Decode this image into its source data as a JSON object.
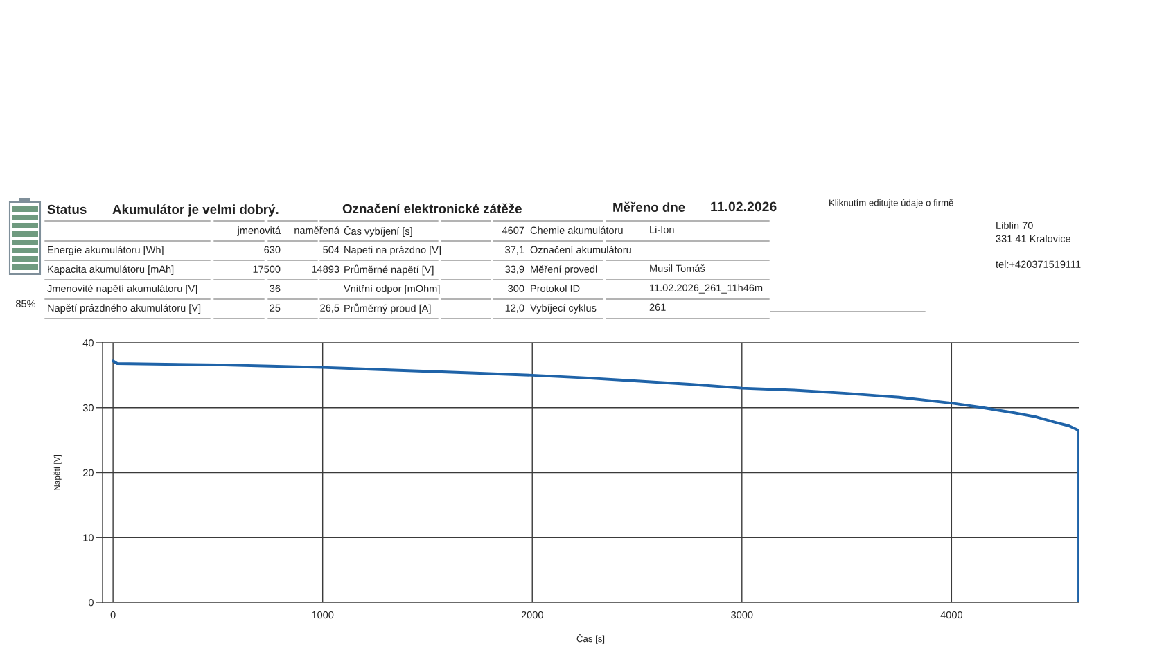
{
  "chart_data": [
    {
      "type": "other",
      "annotations": [
        "Status",
        "Akumulátor je velmi dobrý.",
        "Označení elektronické zátěže",
        "Měřeno dne",
        "11.02.2026",
        "Kliknutím editujte údaje o firmě",
        "jmenovitá",
        "naměřená",
        "Čas vybíjení [s]",
        "4607",
        "Chemie akumulátoru",
        "Li-Ion",
        "Energie akumulátoru [Wh]",
        "630",
        "504",
        "Napeti na prázdno [V]",
        "37,1",
        "Označení akumulátoru",
        "Kapacita akumulátoru [mAh]",
        "17500",
        "14893",
        "Průměrné napětí [V]",
        "33,9",
        "Měření provedl",
        "Musil Tomáš",
        "Jmenovité napětí akumulátoru [V]",
        "36",
        "Vnitřní odpor [mOhm]",
        "300",
        "Protokol ID",
        "11.02.2026_261_11h46m",
        "Napětí prázdného akumulátoru [V]",
        "25",
        "26,5",
        "Průměrný proud [A]",
        "12,0",
        "Vybíjecí cyklus",
        "261",
        "85%",
        "Liblin 70",
        "331 41 Kralovice",
        "tel:+420371519111"
      ]
    },
    {
      "type": "line",
      "xlabel": "Čas [s]",
      "ylabel": "Napětí [V]",
      "x": [
        0,
        20,
        250,
        500,
        750,
        1000,
        1250,
        1500,
        1750,
        2000,
        2250,
        2500,
        2750,
        3000,
        3250,
        3500,
        3750,
        4000,
        4150,
        4300,
        4400,
        4500,
        4560,
        4607,
        4607
      ],
      "series": [
        {
          "color": "#1f63a8",
          "values": [
            37.2,
            36.8,
            36.7,
            36.6,
            36.4,
            36.2,
            35.9,
            35.6,
            35.3,
            35.0,
            34.6,
            34.1,
            33.6,
            33.0,
            32.7,
            32.2,
            31.6,
            30.7,
            30.0,
            29.2,
            28.6,
            27.7,
            27.2,
            26.5,
            0
          ]
        }
      ],
      "xlim": [
        -50,
        4607
      ],
      "ylim": [
        0,
        40
      ],
      "xticks": [
        0,
        1000,
        2000,
        3000,
        4000
      ],
      "yticks": [
        0,
        10,
        20,
        30,
        40
      ],
      "grid": true,
      "line_style": "solid"
    }
  ]
}
